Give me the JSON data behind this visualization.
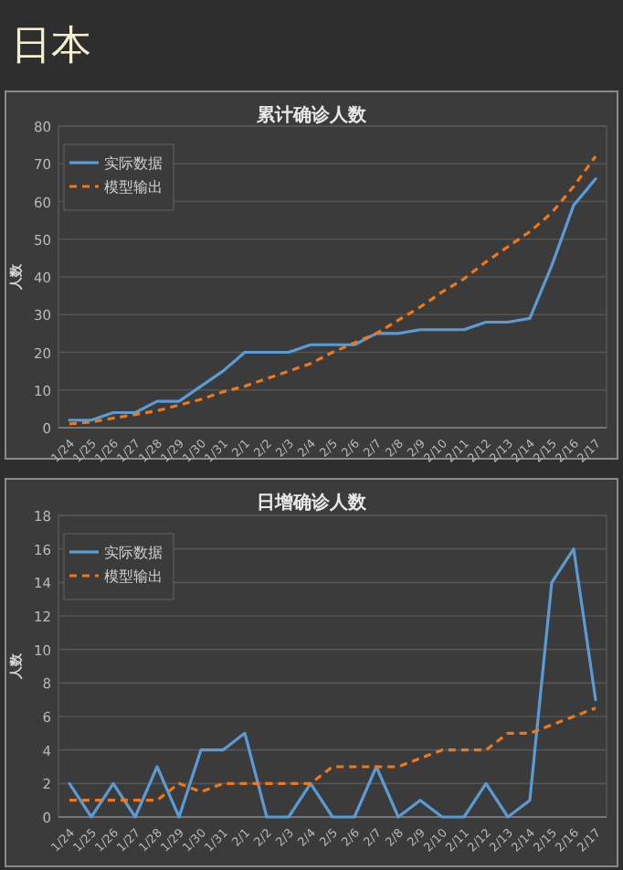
{
  "chart_data": [
    {
      "type": "line",
      "title": "累计确诊人数",
      "ylabel": "人数",
      "annotations": [
        "日本"
      ],
      "categories": [
        "1/24",
        "1/25",
        "1/26",
        "1/27",
        "1/28",
        "1/29",
        "1/30",
        "1/31",
        "2/1",
        "2/2",
        "2/3",
        "2/4",
        "2/5",
        "2/6",
        "2/7",
        "2/8",
        "2/9",
        "2/10",
        "2/11",
        "2/12",
        "2/13",
        "2/14",
        "2/15",
        "2/16",
        "2/17"
      ],
      "series": [
        {
          "name": "实际数据",
          "color": "#5b9bd5",
          "line_style": "solid",
          "values": [
            2,
            2,
            4,
            4,
            7,
            7,
            11,
            15,
            20,
            20,
            20,
            22,
            22,
            22,
            25,
            25,
            26,
            26,
            26,
            28,
            28,
            29,
            43,
            59,
            66
          ]
        },
        {
          "name": "模型输出",
          "color": "#f07818",
          "line_style": "dashed",
          "values": [
            1,
            1.5,
            2.5,
            3.5,
            4.5,
            6,
            7.5,
            9.5,
            11,
            13,
            15,
            17,
            20,
            22.5,
            25,
            28.5,
            32,
            36,
            39.5,
            44,
            48,
            52,
            57,
            64,
            72
          ]
        }
      ],
      "ylim": [
        0,
        80
      ],
      "yticks": [
        0,
        10,
        20,
        30,
        40,
        50,
        60,
        70,
        80
      ],
      "grid": "y",
      "legend": "top left"
    },
    {
      "type": "line",
      "title": "日增确诊人数",
      "ylabel": "人数",
      "categories": [
        "1/24",
        "1/25",
        "1/26",
        "1/27",
        "1/28",
        "1/29",
        "1/30",
        "1/31",
        "2/1",
        "2/2",
        "2/3",
        "2/4",
        "2/5",
        "2/6",
        "2/7",
        "2/8",
        "2/9",
        "2/10",
        "2/11",
        "2/12",
        "2/13",
        "2/14",
        "2/15",
        "2/16",
        "2/17"
      ],
      "series": [
        {
          "name": "实际数据",
          "color": "#5b9bd5",
          "line_style": "solid",
          "values": [
            2,
            0,
            2,
            0,
            3,
            0,
            4,
            4,
            5,
            0,
            0,
            2,
            0,
            0,
            3,
            0,
            1,
            0,
            0,
            2,
            0,
            1,
            14,
            16,
            7
          ]
        },
        {
          "name": "模型输出",
          "color": "#f07818",
          "line_style": "dashed",
          "values": [
            1,
            1,
            1,
            1,
            1,
            2,
            1.5,
            2,
            2,
            2,
            2,
            2,
            3,
            3,
            3,
            3,
            3.5,
            4,
            4,
            4,
            5,
            5,
            5.5,
            6,
            6.5
          ]
        }
      ],
      "ylim": [
        0,
        18
      ],
      "yticks": [
        0,
        2,
        4,
        6,
        8,
        10,
        12,
        14,
        16,
        18
      ],
      "grid": "y",
      "legend": "top left"
    }
  ]
}
